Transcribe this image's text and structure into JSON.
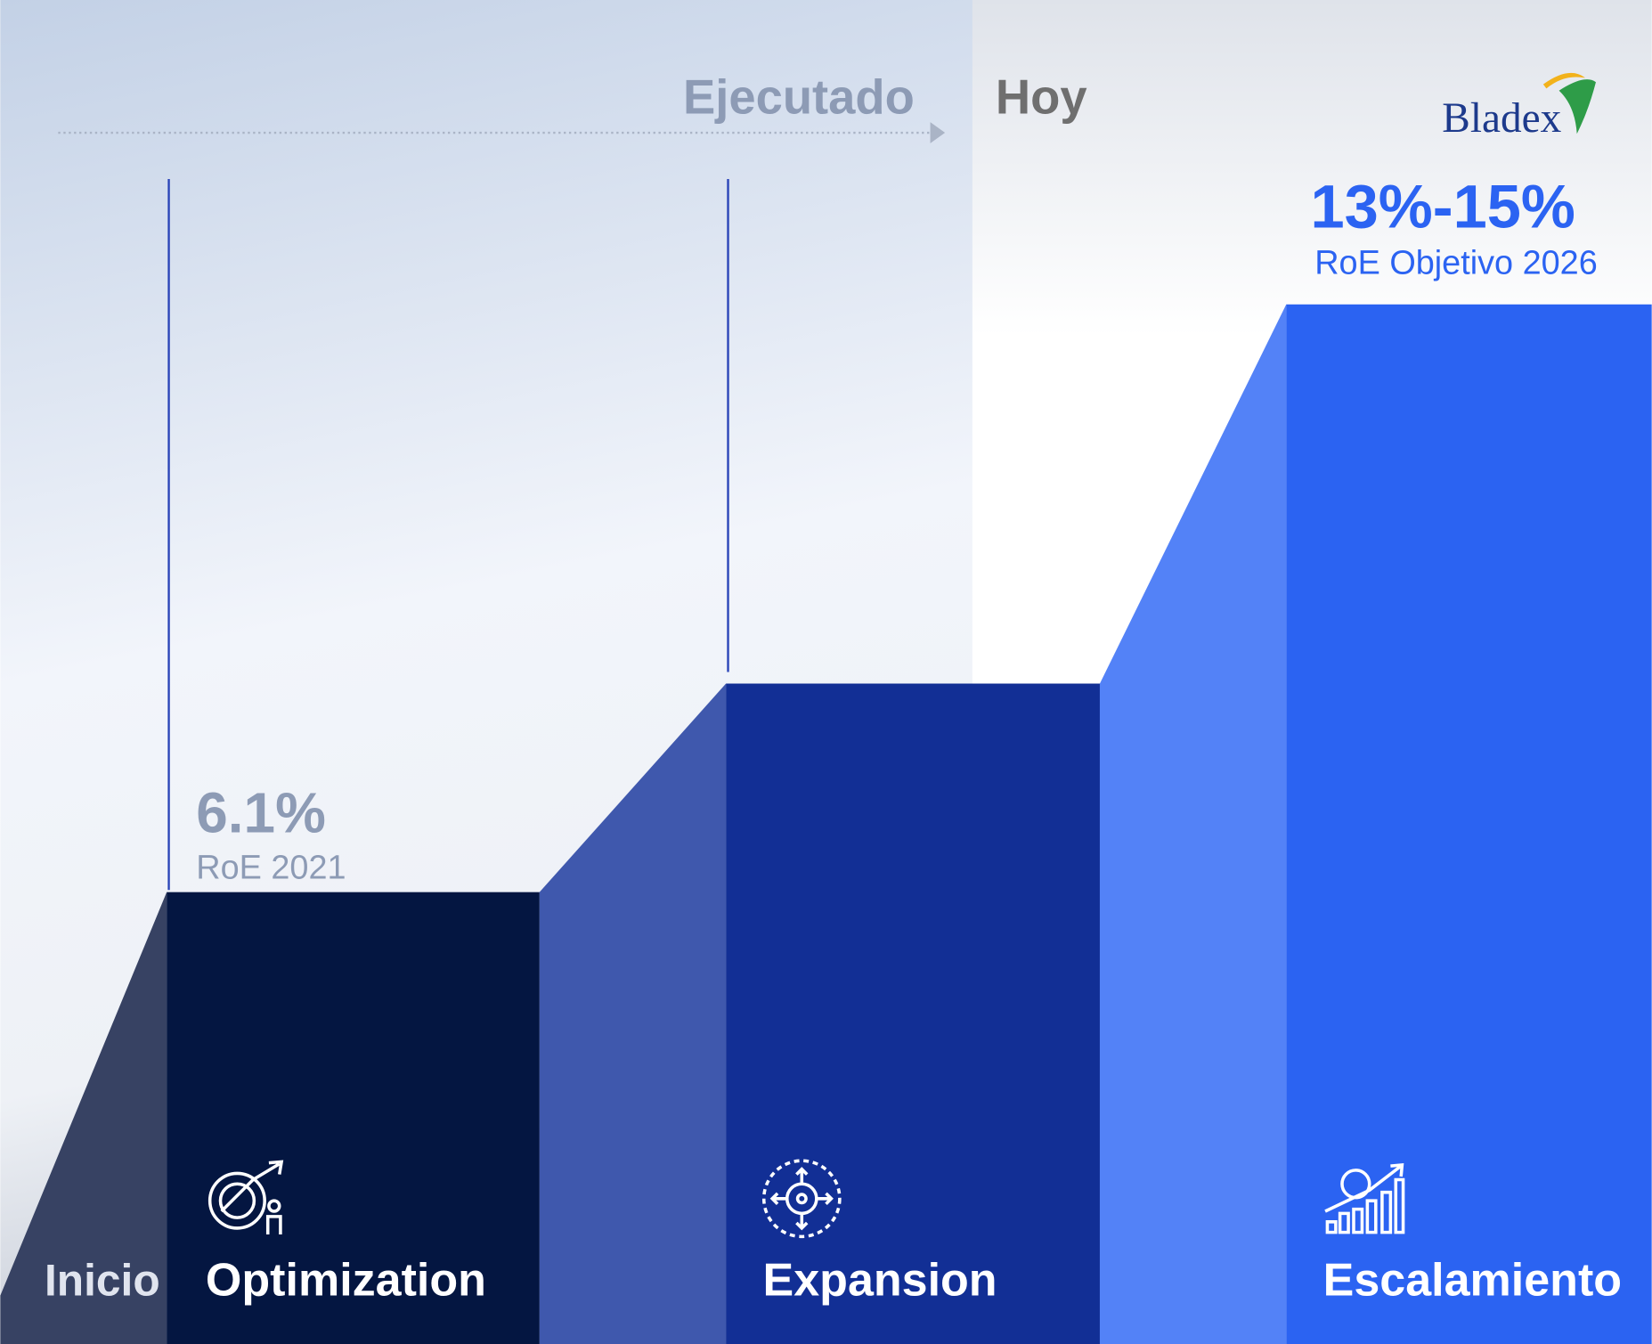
{
  "header": {
    "executed": "Ejecutado",
    "today": "Hoy",
    "logo": "Bladex"
  },
  "stages": [
    {
      "label": "Inicio"
    },
    {
      "label": "Optimization",
      "value": "6.1%",
      "caption": "RoE 2021"
    },
    {
      "label": "Expansion"
    },
    {
      "label": "Escalamiento",
      "value": "13%-15%",
      "caption": "RoE Objetivo 2026"
    }
  ]
}
